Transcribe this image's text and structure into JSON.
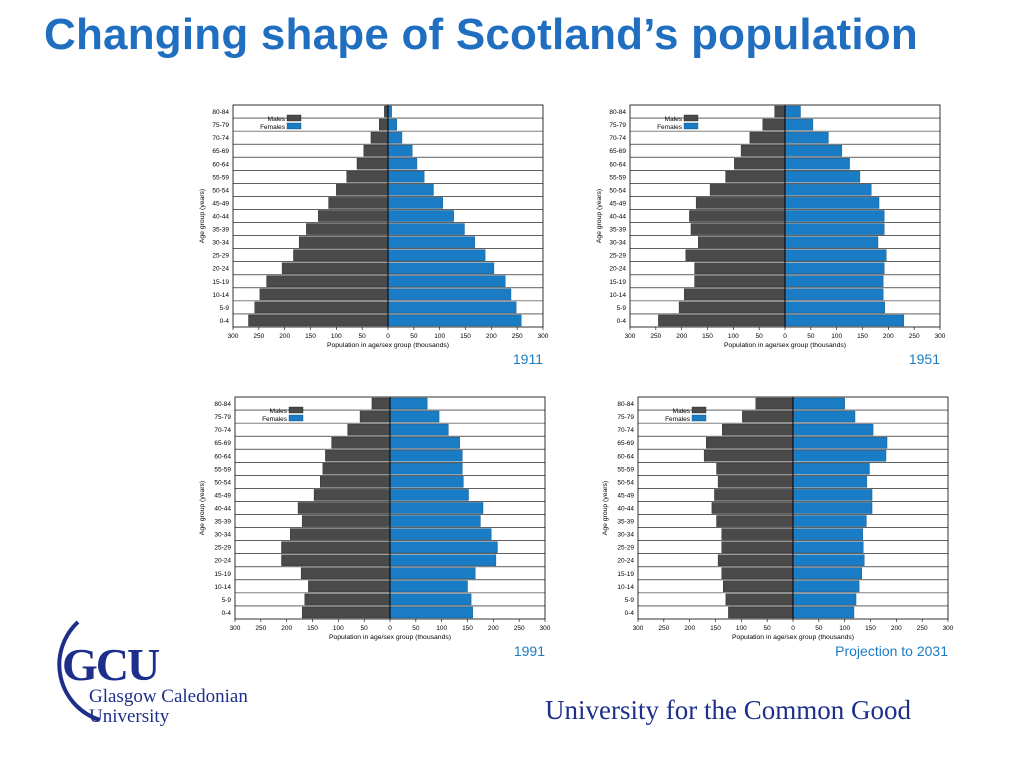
{
  "slide": {
    "title": "Changing shape of Scotland’s population",
    "tagline": "University for the Common Good",
    "logo": {
      "letters": "GCU",
      "line1": "Glasgow Caledonian",
      "line2": "University",
      "arc_color": "#1d2f8a"
    },
    "colors": {
      "title": "#1f6ec0",
      "males": "#4a4a4a",
      "females": "#1a7cc4",
      "year_label": "#1a7cc4"
    }
  },
  "chart_data": [
    {
      "type": "bar",
      "orientation": "population-pyramid",
      "year_label": "1911",
      "categories": [
        "0-4",
        "5-9",
        "10-14",
        "15-19",
        "20-24",
        "25-29",
        "30-34",
        "35-39",
        "40-44",
        "45-49",
        "50-54",
        "55-59",
        "60-64",
        "65-69",
        "70-74",
        "75-79",
        "80-84"
      ],
      "series": [
        {
          "name": "Males",
          "values": [
            270,
            258,
            248,
            235,
            205,
            183,
            172,
            158,
            135,
            115,
            100,
            80,
            60,
            47,
            33,
            17,
            7
          ]
        },
        {
          "name": "Females",
          "values": [
            258,
            248,
            238,
            227,
            205,
            188,
            168,
            148,
            127,
            106,
            88,
            70,
            56,
            47,
            27,
            17,
            7
          ]
        }
      ],
      "xlabel": "Population in age/sex group (thousands)",
      "ylabel": "Age group (years)",
      "xticks": [
        "300",
        "250",
        "200",
        "150",
        "100",
        "50",
        "0",
        "50",
        "100",
        "150",
        "200",
        "250",
        "300"
      ],
      "xlim": [
        -300,
        300
      ],
      "legend": "top-left"
    },
    {
      "type": "bar",
      "orientation": "population-pyramid",
      "year_label": "1951",
      "categories": [
        "0-4",
        "5-9",
        "10-14",
        "15-19",
        "20-24",
        "25-29",
        "30-34",
        "35-39",
        "40-44",
        "45-49",
        "50-54",
        "55-59",
        "60-64",
        "65-69",
        "70-74",
        "75-79",
        "80-84"
      ],
      "series": [
        {
          "name": "Males",
          "values": [
            245,
            205,
            195,
            175,
            175,
            192,
            168,
            182,
            185,
            172,
            145,
            115,
            98,
            85,
            68,
            43,
            20
          ]
        },
        {
          "name": "Females",
          "values": [
            230,
            193,
            190,
            190,
            192,
            196,
            180,
            192,
            192,
            182,
            167,
            145,
            125,
            110,
            84,
            54,
            30
          ]
        }
      ],
      "xlabel": "Population in age/sex group (thousands)",
      "ylabel": "Age group (years)",
      "xticks": [
        "300",
        "250",
        "200",
        "150",
        "100",
        "50",
        "0",
        "50",
        "100",
        "150",
        "200",
        "250",
        "300"
      ],
      "xlim": [
        -300,
        300
      ],
      "legend": "top-left"
    },
    {
      "type": "bar",
      "orientation": "population-pyramid",
      "year_label": "1991",
      "categories": [
        "0-4",
        "5-9",
        "10-14",
        "15-19",
        "20-24",
        "25-29",
        "30-34",
        "35-39",
        "40-44",
        "45-49",
        "50-54",
        "55-59",
        "60-64",
        "65-69",
        "70-74",
        "75-79",
        "80-84"
      ],
      "series": [
        {
          "name": "Males",
          "values": [
            170,
            165,
            158,
            172,
            210,
            210,
            193,
            170,
            178,
            147,
            135,
            130,
            125,
            113,
            82,
            58,
            35
          ]
        },
        {
          "name": "Females",
          "values": [
            160,
            157,
            150,
            165,
            205,
            208,
            196,
            175,
            180,
            152,
            142,
            140,
            140,
            135,
            113,
            95,
            72
          ]
        }
      ],
      "xlabel": "Population in age/sex group (thousands)",
      "ylabel": "Age group (years)",
      "xticks": [
        "300",
        "250",
        "200",
        "150",
        "100",
        "50",
        "0",
        "50",
        "100",
        "150",
        "200",
        "250",
        "300"
      ],
      "xlim": [
        -300,
        300
      ],
      "legend": "top-left"
    },
    {
      "type": "bar",
      "orientation": "population-pyramid",
      "year_label": "Projection to 2031",
      "categories": [
        "0-4",
        "5-9",
        "10-14",
        "15-19",
        "20-24",
        "25-29",
        "30-34",
        "35-39",
        "40-44",
        "45-49",
        "50-54",
        "55-59",
        "60-64",
        "65-69",
        "70-74",
        "75-79",
        "80-84"
      ],
      "series": [
        {
          "name": "Males",
          "values": [
            125,
            130,
            135,
            138,
            145,
            138,
            138,
            148,
            157,
            152,
            145,
            148,
            172,
            168,
            137,
            98,
            72
          ]
        },
        {
          "name": "Females",
          "values": [
            118,
            122,
            128,
            133,
            138,
            136,
            135,
            142,
            153,
            153,
            143,
            148,
            180,
            182,
            155,
            120,
            100
          ]
        }
      ],
      "xlabel": "Population in age/sex group (thousands)",
      "ylabel": "Age group (years)",
      "xticks": [
        "300",
        "250",
        "200",
        "150",
        "100",
        "50",
        "0",
        "50",
        "100",
        "150",
        "200",
        "250",
        "300"
      ],
      "xlim": [
        -300,
        300
      ],
      "legend": "top-left"
    }
  ]
}
